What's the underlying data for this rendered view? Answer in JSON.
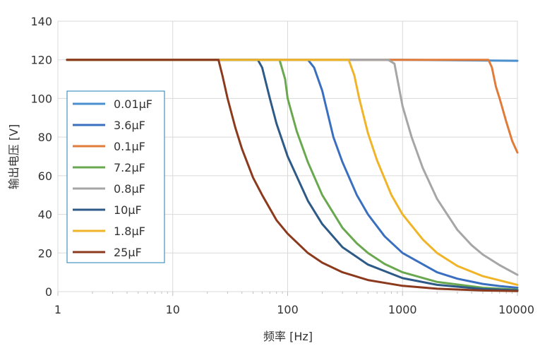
{
  "chart_data": {
    "type": "line",
    "title": "",
    "xlabel": "频率 [Hz]",
    "ylabel": "输出电压 [V]",
    "x_scale": "log",
    "xlim": [
      1,
      10000
    ],
    "ylim": [
      0,
      140
    ],
    "x_ticks": [
      "1",
      "10",
      "100",
      "1000",
      "10000"
    ],
    "y_ticks": [
      "0",
      "20",
      "40",
      "60",
      "80",
      "100",
      "120",
      "140"
    ],
    "grid": true,
    "legend_position": "left-center",
    "series": [
      {
        "name": "0.01μF",
        "color": "#4a90cf",
        "x": [
          1.2,
          10,
          100,
          1000,
          10000
        ],
        "y": [
          120,
          120,
          120,
          120,
          119.5
        ]
      },
      {
        "name": "3.6μF",
        "color": "#3a6fc0",
        "x": [
          1.2,
          150,
          170,
          200,
          250,
          300,
          400,
          500,
          700,
          1000,
          2000,
          3000,
          5000,
          7000,
          10000
        ],
        "y": [
          120,
          120,
          116,
          104,
          80,
          67,
          50,
          40,
          28.6,
          20,
          10,
          6.7,
          4,
          2.9,
          2
        ]
      },
      {
        "name": "0.1μF",
        "color": "#e07b3a",
        "x": [
          1.2,
          5000,
          5600,
          6000,
          6500,
          7000,
          8000,
          9000,
          10000
        ],
        "y": [
          120,
          120,
          120,
          116,
          106,
          100,
          88,
          78,
          72
        ]
      },
      {
        "name": "7.2μF",
        "color": "#6aa84f",
        "x": [
          1.2,
          85,
          95,
          100,
          120,
          150,
          200,
          300,
          400,
          500,
          700,
          1000,
          2000,
          5000,
          10000
        ],
        "y": [
          120,
          120,
          110,
          100,
          83,
          67,
          50,
          33,
          25,
          20,
          14.3,
          10,
          5,
          2,
          1
        ]
      },
      {
        "name": "0.8μF",
        "color": "#a6a6a6",
        "x": [
          1.2,
          750,
          850,
          1000,
          1200,
          1500,
          2000,
          3000,
          4000,
          5000,
          7000,
          10000
        ],
        "y": [
          120,
          120,
          118,
          96,
          80,
          64,
          48,
          32,
          24,
          19.2,
          13.7,
          8.7
        ]
      },
      {
        "name": "10μF",
        "color": "#2e5a87",
        "x": [
          1.2,
          55,
          60,
          70,
          80,
          100,
          150,
          200,
          300,
          500,
          1000,
          2000,
          5000,
          10000
        ],
        "y": [
          120,
          120,
          116,
          100,
          87,
          70,
          47,
          35,
          23,
          14,
          7,
          3.5,
          1.4,
          0.7
        ]
      },
      {
        "name": "1.8μF",
        "color": "#f0b429",
        "x": [
          1.2,
          340,
          380,
          420,
          500,
          600,
          800,
          1000,
          1500,
          2000,
          3000,
          5000,
          10000
        ],
        "y": [
          120,
          120,
          112,
          100,
          82,
          68,
          50,
          40,
          27,
          20,
          13.3,
          8,
          3.5
        ]
      },
      {
        "name": "25μF",
        "color": "#8b3a1e",
        "x": [
          1.2,
          25,
          27,
          30,
          35,
          40,
          50,
          60,
          80,
          100,
          150,
          200,
          300,
          500,
          1000,
          2000,
          5000,
          10000
        ],
        "y": [
          120,
          120,
          112,
          100,
          85,
          74,
          59,
          50,
          37,
          30,
          20,
          15,
          10,
          6,
          3,
          1.5,
          0.6,
          0.3
        ]
      }
    ]
  }
}
